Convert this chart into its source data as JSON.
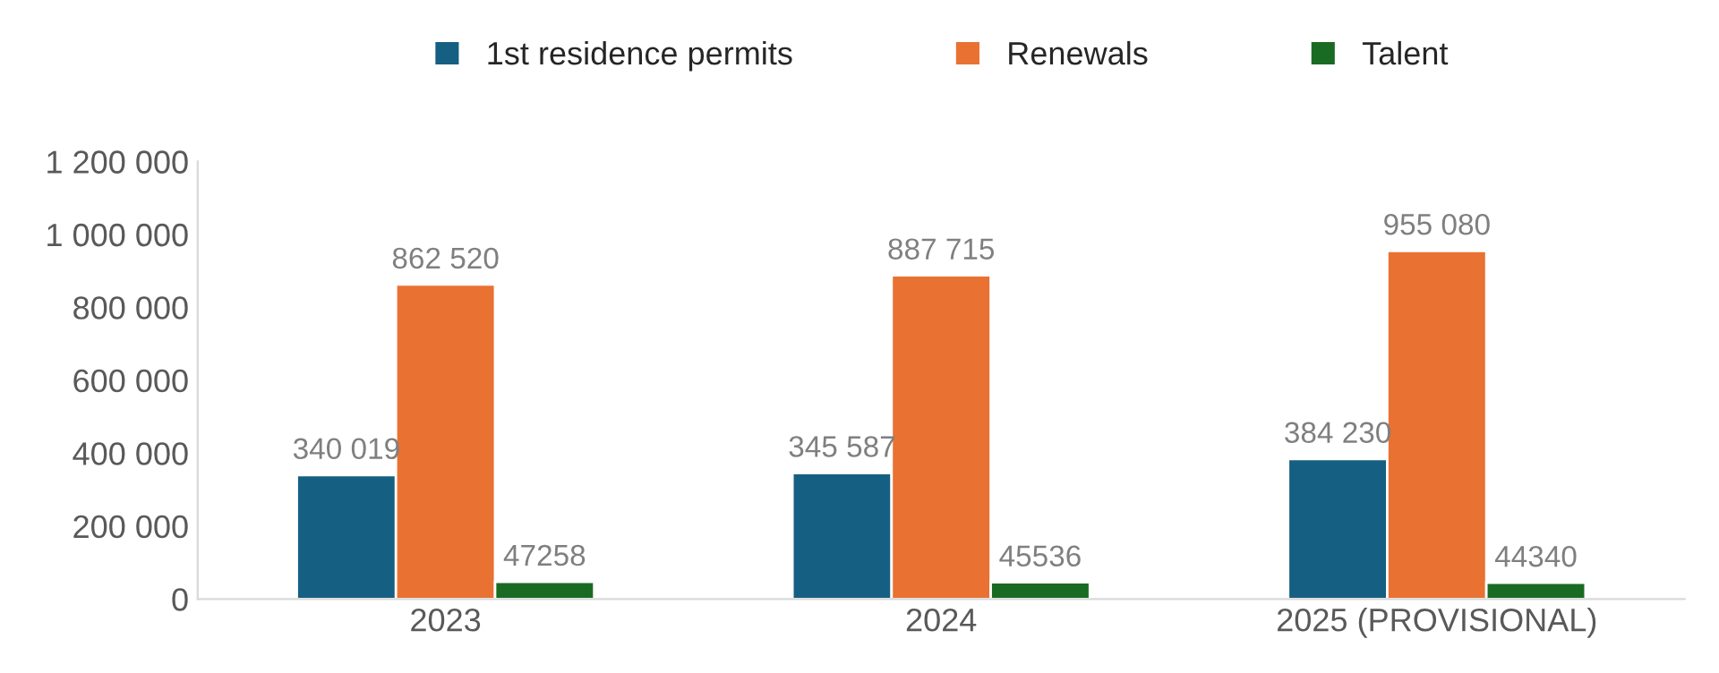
{
  "chart_data": {
    "type": "bar",
    "categories": [
      "2023",
      "2024",
      "2025 (PROVISIONAL)"
    ],
    "series": [
      {
        "name": "1st residence permits",
        "color": "#156082",
        "values": [
          340019,
          345587,
          384230
        ],
        "value_labels": [
          "340 019",
          "345 587",
          "384 230"
        ]
      },
      {
        "name": "Renewals",
        "color": "#e97132",
        "values": [
          862520,
          887715,
          955080
        ],
        "value_labels": [
          "862 520",
          "887 715",
          "955 080"
        ]
      },
      {
        "name": "Talent",
        "color": "#196b24",
        "values": [
          47258,
          45536,
          44340
        ],
        "value_labels": [
          "47258",
          "45536",
          "44340"
        ]
      }
    ],
    "ylim": [
      0,
      1200000
    ],
    "yticks": [
      0,
      {
        "value": 200000,
        "label": "200 000"
      },
      {
        "value": 400000,
        "label": "400 000"
      },
      {
        "value": 600000,
        "label": "600 000"
      },
      {
        "value": 800000,
        "label": "800 000"
      },
      {
        "value": 1000000,
        "label": "1 000 000"
      },
      {
        "value": 1200000,
        "label": "1 200 000"
      }
    ],
    "legend": "top",
    "grid": false
  }
}
